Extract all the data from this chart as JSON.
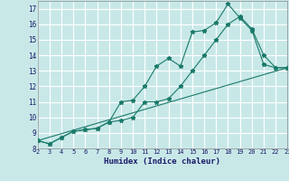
{
  "background_color": "#c8e8e8",
  "grid_color": "#ffffff",
  "line_color": "#1a7a6a",
  "xlabel": "Humidex (Indice chaleur)",
  "xlim": [
    2,
    23
  ],
  "ylim": [
    8,
    17.5
  ],
  "xticks": [
    2,
    3,
    4,
    5,
    6,
    7,
    8,
    9,
    10,
    11,
    12,
    13,
    14,
    15,
    16,
    17,
    18,
    19,
    20,
    21,
    22,
    23
  ],
  "yticks": [
    8,
    9,
    10,
    11,
    12,
    13,
    14,
    15,
    16,
    17
  ],
  "line1_x": [
    2,
    3,
    4,
    5,
    6,
    7,
    8,
    9,
    10,
    11,
    12,
    13,
    14,
    15,
    16,
    17,
    18,
    19,
    20,
    21,
    22,
    23
  ],
  "line1_y": [
    8.5,
    8.3,
    8.7,
    9.1,
    9.2,
    9.3,
    9.7,
    11.0,
    11.1,
    12.0,
    13.3,
    13.8,
    13.3,
    15.5,
    15.6,
    16.1,
    17.3,
    16.4,
    15.6,
    13.4,
    13.2,
    13.2
  ],
  "line2_x": [
    2,
    3,
    4,
    5,
    6,
    7,
    8,
    9,
    10,
    11,
    12,
    13,
    14,
    15,
    16,
    17,
    18,
    19,
    20,
    21,
    22,
    23
  ],
  "line2_y": [
    8.5,
    8.3,
    8.7,
    9.1,
    9.2,
    9.3,
    9.7,
    9.8,
    10.0,
    11.0,
    11.0,
    11.2,
    12.0,
    13.0,
    14.0,
    15.0,
    16.0,
    16.5,
    15.7,
    14.0,
    13.2,
    13.2
  ],
  "line3_x": [
    2,
    23
  ],
  "line3_y": [
    8.5,
    13.2
  ]
}
